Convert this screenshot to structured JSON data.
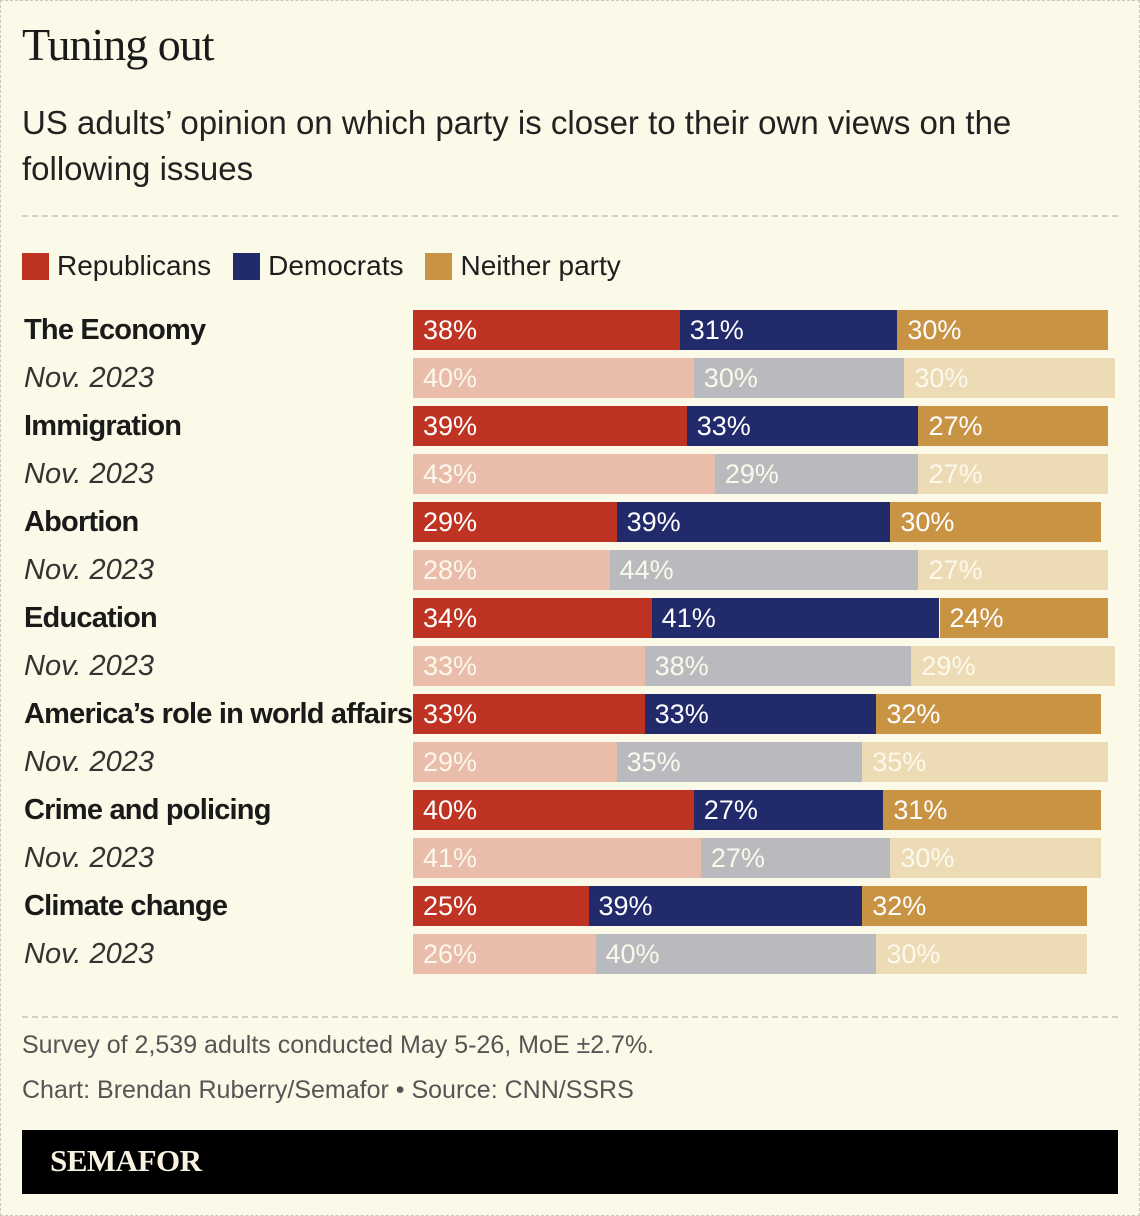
{
  "title": "Tuning out",
  "subtitle": "US adults’ opinion on which party is closer to their own views on the following issues",
  "legend": [
    {
      "label": "Republicans",
      "color": "#bf3322"
    },
    {
      "label": "Democrats",
      "color": "#212a6a"
    },
    {
      "label": "Neither party",
      "color": "#c99344"
    }
  ],
  "colors_previous": [
    "#eabcaa",
    "#b9babd",
    "#eddbb5"
  ],
  "notes": {
    "survey": "Survey of 2,539 adults conducted May 5-26, MoE ±2.7%.",
    "credit": "Chart: Brendan Ruberry/Semafor • Source: CNN/SSRS"
  },
  "brand": "SEMAFOR",
  "chart_data": {
    "type": "bar",
    "orientation": "horizontal-stacked",
    "title": "Tuning out",
    "subtitle": "US adults’ opinion on which party is closer to their own views on the following issues",
    "series_names": [
      "Republicans",
      "Democrats",
      "Neither party"
    ],
    "unit": "%",
    "rows": [
      {
        "label": "The Economy",
        "period": "current",
        "values": [
          38,
          31,
          30
        ]
      },
      {
        "label": "Nov. 2023",
        "period": "previous",
        "values": [
          40,
          30,
          30
        ]
      },
      {
        "label": "Immigration",
        "period": "current",
        "values": [
          39,
          33,
          27
        ]
      },
      {
        "label": "Nov. 2023",
        "period": "previous",
        "values": [
          43,
          29,
          27
        ]
      },
      {
        "label": "Abortion",
        "period": "current",
        "values": [
          29,
          39,
          30
        ]
      },
      {
        "label": "Nov. 2023",
        "period": "previous",
        "values": [
          28,
          44,
          27
        ]
      },
      {
        "label": "Education",
        "period": "current",
        "values": [
          34,
          41,
          24
        ]
      },
      {
        "label": "Nov. 2023",
        "period": "previous",
        "values": [
          33,
          38,
          29
        ]
      },
      {
        "label": "America’s role in world affairs",
        "period": "current",
        "values": [
          33,
          33,
          32
        ]
      },
      {
        "label": "Nov. 2023",
        "period": "previous",
        "values": [
          29,
          35,
          35
        ]
      },
      {
        "label": "Crime and policing",
        "period": "current",
        "values": [
          40,
          27,
          31
        ]
      },
      {
        "label": "Nov. 2023",
        "period": "previous",
        "values": [
          41,
          27,
          30
        ]
      },
      {
        "label": "Climate change",
        "period": "current",
        "values": [
          25,
          39,
          32
        ]
      },
      {
        "label": "Nov. 2023",
        "period": "previous",
        "values": [
          26,
          40,
          30
        ]
      }
    ],
    "legend_position": "top-left",
    "grid": false
  }
}
